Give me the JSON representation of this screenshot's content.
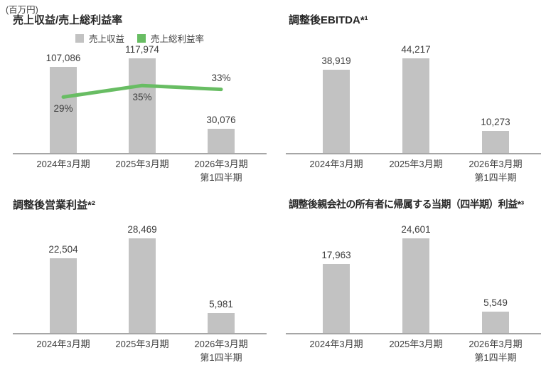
{
  "unit_label": "(百万円)",
  "colors": {
    "bar": "#c2c2c2",
    "line": "#68bd63",
    "axis": "#a6a6a6",
    "value_text": "#3d3d3d",
    "title_text": "#262626"
  },
  "chart_data": [
    {
      "type": "bar+line",
      "title": "売上収益/売上総利益率",
      "unit": "百万円",
      "grid": false,
      "legend_position": "top",
      "categories": [
        "2024年3月期",
        "2025年3月期",
        "2026年3月期\n第1四半期"
      ],
      "bar_series": {
        "name": "売上収益",
        "values": [
          107086,
          117974,
          30076
        ],
        "labels": [
          "107,086",
          "117,974",
          "30,076"
        ]
      },
      "line_series": {
        "name": "売上総利益率",
        "axis": "secondary",
        "unit": "%",
        "values": [
          29,
          35,
          33
        ],
        "labels": [
          "29%",
          "35%",
          "33%"
        ]
      }
    },
    {
      "type": "bar",
      "title": "調整後EBITDA*¹",
      "unit": "百万円",
      "grid": false,
      "categories": [
        "2024年3月期",
        "2025年3月期",
        "2026年3月期\n第1四半期"
      ],
      "bar_series": {
        "name": "調整後EBITDA",
        "values": [
          38919,
          44217,
          10273
        ],
        "labels": [
          "38,919",
          "44,217",
          "10,273"
        ]
      }
    },
    {
      "type": "bar",
      "title": "調整後営業利益*²",
      "unit": "百万円",
      "grid": false,
      "categories": [
        "2024年3月期",
        "2025年3月期",
        "2026年3月期\n第1四半期"
      ],
      "bar_series": {
        "name": "調整後営業利益",
        "values": [
          22504,
          28469,
          5981
        ],
        "labels": [
          "22,504",
          "28,469",
          "5,981"
        ]
      }
    },
    {
      "type": "bar",
      "title": "調整後親会社の所有者に帰属する当期（四半期）利益*³",
      "unit": "百万円",
      "grid": false,
      "categories": [
        "2024年3月期",
        "2025年3月期",
        "2026年3月期\n第1四半期"
      ],
      "bar_series": {
        "name": "調整後親会社の所有者に帰属する当期（四半期）利益",
        "values": [
          17963,
          24601,
          5549
        ],
        "labels": [
          "17,963",
          "24,601",
          "5,549"
        ]
      }
    }
  ]
}
